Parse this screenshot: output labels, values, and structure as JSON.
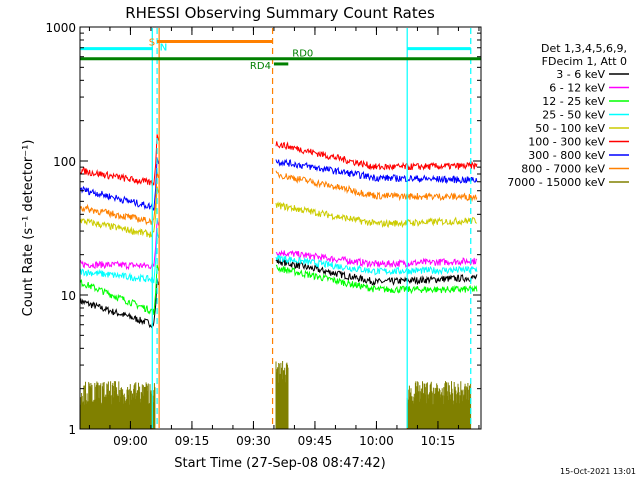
{
  "chart_data": {
    "type": "line",
    "title": "RHESSI Observing Summary Count Rates",
    "xlabel": "Start Time (27-Sep-08 08:47:42)",
    "ylabel": "Count Rate (s⁻¹ detector⁻¹)",
    "x_range": [
      "08:47:42",
      "10:25:30"
    ],
    "x_ticks": [
      "09:00",
      "09:15",
      "09:30",
      "09:45",
      "10:00",
      "10:15"
    ],
    "y_scale": "log",
    "ylim": [
      1,
      1000
    ],
    "y_ticks": [
      "1",
      "10",
      "100",
      "1000"
    ],
    "grid": false,
    "legend_placement": "right",
    "legend_header": [
      "Det 1,3,4,5,6,9,",
      "FDecim 1, Att 0"
    ],
    "footer_date": "15-Oct-2021 13:01",
    "series": [
      {
        "name": "3 - 6 keV",
        "color": "#000000",
        "before": {
          "start": 9,
          "end": 6
        },
        "after": {
          "start": 18,
          "mid": 12.5,
          "end": 13.5
        }
      },
      {
        "name": "6 - 12 keV",
        "color": "#ff00ff",
        "before": {
          "start": 17,
          "end": 16.5
        },
        "after": {
          "start": 21,
          "mid": 17,
          "end": 18
        }
      },
      {
        "name": "12 - 25 keV",
        "color": "#00ff00",
        "before": {
          "start": 12.5,
          "end": 7.5
        },
        "after": {
          "start": 16,
          "mid": 11,
          "end": 11
        }
      },
      {
        "name": "25 - 50 keV",
        "color": "#00ffff",
        "before": {
          "start": 15,
          "end": 13
        },
        "after": {
          "start": 19,
          "mid": 15,
          "end": 15.5
        }
      },
      {
        "name": "50 - 100 keV",
        "color": "#cccc00",
        "before": {
          "start": 36,
          "end": 28
        },
        "after": {
          "start": 47,
          "mid": 34,
          "end": 36
        }
      },
      {
        "name": "100 - 300 keV",
        "color": "#ff0000",
        "before": {
          "start": 85,
          "end": 68
        },
        "after": {
          "start": 135,
          "mid": 90,
          "end": 92
        }
      },
      {
        "name": "300 - 800 keV",
        "color": "#0000ff",
        "before": {
          "start": 62,
          "end": 45
        },
        "after": {
          "start": 100,
          "mid": 75,
          "end": 72
        }
      },
      {
        "name": "800 - 7000 keV",
        "color": "#ff8000",
        "before": {
          "start": 45,
          "end": 35
        },
        "after": {
          "start": 80,
          "mid": 55,
          "end": 54
        }
      },
      {
        "name": "7000 - 15000 keV",
        "color": "#808000",
        "before": {
          "start": 1.9,
          "end": 1.9
        },
        "after": {
          "start": 2.7,
          "mid": 1.5,
          "end": 1.9
        }
      }
    ],
    "observing_flags": [
      {
        "label": "S",
        "color": "#ff8000",
        "y": 780,
        "start": "09:06:30",
        "end": "09:34:40"
      },
      {
        "label": "N",
        "color": "#00ffff",
        "y": 690,
        "start": "08:47:42",
        "end": "09:05:30"
      },
      {
        "label": "N",
        "color": "#00ffff",
        "y": 690,
        "start": "10:07:30",
        "end": "10:23:00"
      },
      {
        "label": "",
        "color": "#008000",
        "y": 580,
        "start": "08:47:42",
        "end": "10:25:30"
      },
      {
        "label": "RD4",
        "color": "#008000",
        "y": 530,
        "start": "09:35:00",
        "end": "09:38:30"
      },
      {
        "label": "RD0",
        "color": "#008000",
        "y": 580,
        "start": "09:38:30",
        "end": "09:38:30"
      }
    ],
    "vertical_lines": [
      {
        "time": "09:05:20",
        "color": "#00ffff",
        "style": "solid"
      },
      {
        "time": "09:06:30",
        "color": "#00ffff",
        "style": "dashed"
      },
      {
        "time": "09:07:00",
        "color": "#ff8000",
        "style": "solid"
      },
      {
        "time": "09:34:40",
        "color": "#ff8000",
        "style": "dashed"
      },
      {
        "time": "10:07:30",
        "color": "#00ffff",
        "style": "solid"
      },
      {
        "time": "10:23:00",
        "color": "#00ffff",
        "style": "dashed"
      }
    ],
    "data_gap": {
      "start": "09:07:00",
      "end": "09:35:30"
    }
  }
}
